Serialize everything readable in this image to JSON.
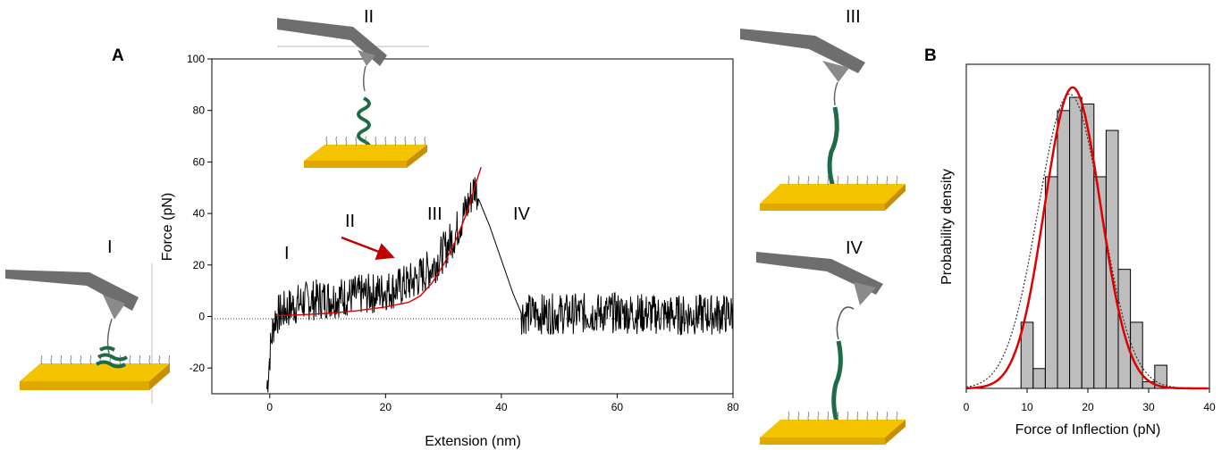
{
  "panels": {
    "a_letter": "A",
    "b_letter": "B"
  },
  "stage_labels": {
    "inset_i": "I",
    "inset_ii": "II",
    "inset_iii": "III",
    "inset_iv": "IV",
    "trace_i": "I",
    "trace_ii": "II",
    "trace_iii": "III",
    "trace_iv": "IV"
  },
  "colors": {
    "trace": "#000000",
    "fit": "#e00000",
    "arrow": "#c00000",
    "bar_fill": "#bdbdbd",
    "substrate": "#f5c400",
    "protein": "#1e6b4a",
    "cantilever": "#6e6e6e"
  },
  "chart_data": [
    {
      "type": "line",
      "title": "",
      "xlabel": "Extension (nm)",
      "ylabel": "Force (pN)",
      "xlim": [
        -10,
        80
      ],
      "ylim": [
        -30,
        100
      ],
      "xticks": [
        0,
        20,
        40,
        60,
        80
      ],
      "yticks": [
        -20,
        0,
        20,
        40,
        60,
        80,
        100
      ],
      "grid": false,
      "baseline_y": 0,
      "series": [
        {
          "kind": "trace",
          "points": [
            [
              -0.5,
              -28
            ],
            [
              0,
              -15
            ],
            [
              0.5,
              -5
            ],
            [
              1,
              0
            ],
            [
              3,
              3
            ],
            [
              6,
              6
            ],
            [
              10,
              7
            ],
            [
              14,
              8
            ],
            [
              18,
              9
            ],
            [
              22,
              11
            ],
            [
              25,
              14
            ],
            [
              28,
              19
            ],
            [
              30,
              25
            ],
            [
              32,
              32
            ],
            [
              34,
              42
            ],
            [
              35.5,
              51
            ],
            [
              36,
              46
            ],
            [
              38,
              35
            ],
            [
              40,
              22
            ],
            [
              42,
              9
            ],
            [
              43.5,
              1
            ],
            [
              50,
              1
            ],
            [
              60,
              1.5
            ],
            [
              70,
              0.5
            ],
            [
              80,
              1
            ]
          ]
        },
        {
          "kind": "fit",
          "points": [
            [
              1,
              0.3
            ],
            [
              5,
              0.6
            ],
            [
              10,
              1.2
            ],
            [
              15,
              2.2
            ],
            [
              20,
              3.7
            ],
            [
              24,
              5.5
            ],
            [
              26,
              8
            ],
            [
              28,
              13
            ],
            [
              30,
              20
            ],
            [
              32,
              29
            ],
            [
              34,
              40
            ],
            [
              35.5,
              51
            ],
            [
              36.5,
              58
            ]
          ]
        }
      ],
      "annotations": [
        "I",
        "II",
        "III",
        "IV"
      ]
    },
    {
      "type": "bar",
      "title": "",
      "xlabel": "Force of Inflection (pN)",
      "ylabel": "Probability density",
      "xlim": [
        0,
        40
      ],
      "xticks": [
        0,
        10,
        20,
        30,
        40
      ],
      "bin_edges": [
        9,
        11,
        13,
        15,
        17,
        19,
        21,
        23,
        25,
        27,
        29,
        31,
        33
      ],
      "values": [
        1,
        0.3,
        3.2,
        4.2,
        4.4,
        4.3,
        3.2,
        3.9,
        1.8,
        1,
        0.1,
        0.35
      ],
      "series": [
        {
          "name": "",
          "kind": "gaussian_fit",
          "mean": 17.5,
          "sd": 4.6,
          "peak": 4.55,
          "style": "solid"
        },
        {
          "name": "",
          "kind": "gaussian_fit",
          "mean": 17.0,
          "sd": 5.2,
          "peak": 4.45,
          "style": "dotted"
        }
      ]
    }
  ]
}
